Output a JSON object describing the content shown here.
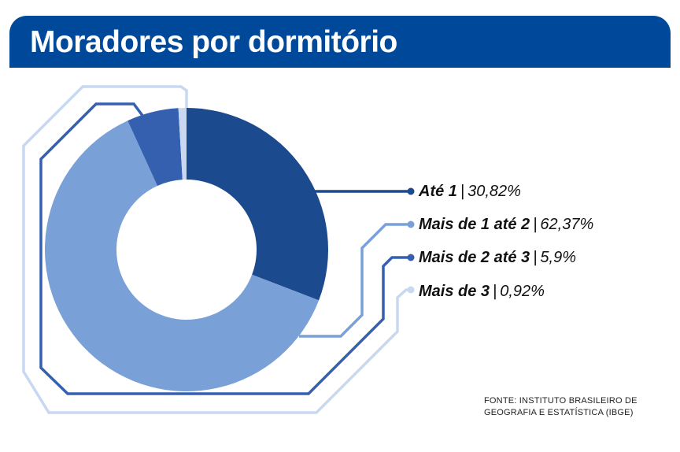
{
  "header": {
    "title": "Moradores por dormitório"
  },
  "chart_data": {
    "type": "pie",
    "variant": "donut",
    "title": "Moradores por dormitório",
    "categories": [
      "Até 1",
      "Mais de 1 até 2",
      "Mais de 2 até 3",
      "Mais de 3"
    ],
    "values": [
      30.82,
      62.37,
      5.9,
      0.92
    ],
    "value_labels": [
      "30,82%",
      "62,37%",
      "5,9%",
      "0,92%"
    ],
    "colors": [
      "#1c4a8e",
      "#7aa0d8",
      "#3560b0",
      "#c8d8f0"
    ],
    "legend_placement": "right"
  },
  "source": {
    "line1": "FONTE: INSTITUTO BRASILEIRO DE",
    "line2": "GEOGRAFIA E ESTATÍSTICA (IBGE)"
  }
}
